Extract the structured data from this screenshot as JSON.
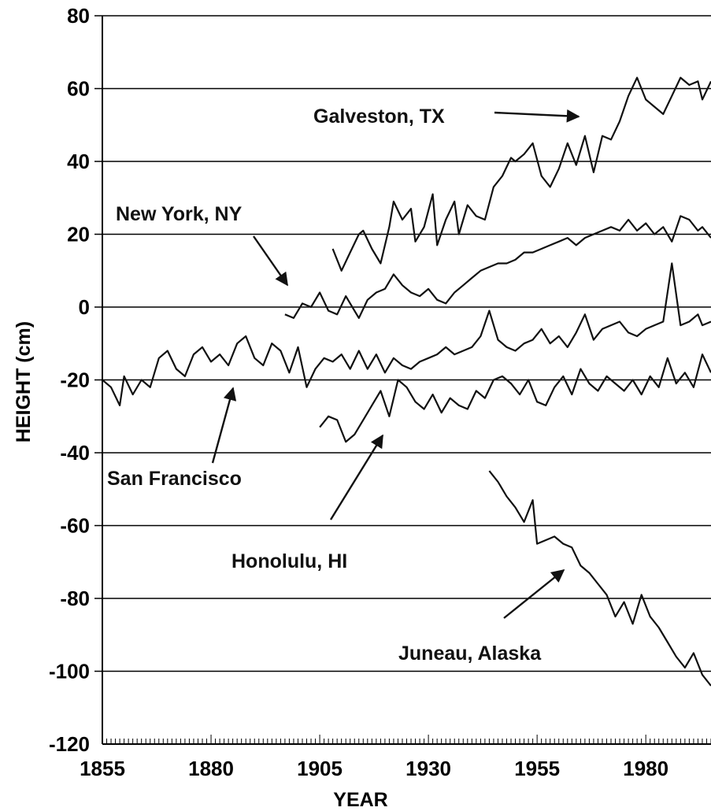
{
  "chart_data": {
    "type": "line",
    "title": "",
    "xlabel": "YEAR",
    "ylabel": "HEIGHT (cm)",
    "xlim": [
      1855,
      1995
    ],
    "ylim": [
      -120,
      80
    ],
    "xticks": [
      1855,
      1880,
      1905,
      1930,
      1955,
      1980
    ],
    "yticks": [
      -120,
      -100,
      -80,
      -60,
      -40,
      -20,
      0,
      20,
      40,
      60,
      80
    ],
    "grid": "horizontal",
    "legend": "none",
    "series": [
      {
        "name": "Galveston, TX",
        "x": [
          1908,
          1910,
          1912,
          1914,
          1915,
          1917,
          1919,
          1921,
          1922,
          1924,
          1926,
          1927,
          1929,
          1931,
          1932,
          1934,
          1936,
          1937,
          1939,
          1941,
          1943,
          1945,
          1947,
          1949,
          1950,
          1952,
          1954,
          1956,
          1958,
          1960,
          1962,
          1964,
          1966,
          1968,
          1970,
          1972,
          1974,
          1976,
          1978,
          1980,
          1982,
          1984,
          1986,
          1988,
          1990,
          1992,
          1993,
          1995
        ],
        "values": [
          16,
          10,
          15,
          20,
          21,
          16,
          12,
          22,
          29,
          24,
          27,
          18,
          22,
          31,
          17,
          24,
          29,
          20,
          28,
          25,
          24,
          33,
          36,
          41,
          40,
          42,
          45,
          36,
          33,
          38,
          45,
          39,
          47,
          37,
          47,
          46,
          51,
          58,
          63,
          57,
          55,
          53,
          58,
          63,
          61,
          62,
          57,
          62
        ]
      },
      {
        "name": "New York, NY",
        "x": [
          1897,
          1899,
          1901,
          1903,
          1905,
          1907,
          1909,
          1911,
          1913,
          1914,
          1916,
          1918,
          1920,
          1922,
          1924,
          1926,
          1928,
          1930,
          1932,
          1934,
          1936,
          1938,
          1940,
          1942,
          1944,
          1946,
          1948,
          1950,
          1952,
          1954,
          1956,
          1958,
          1960,
          1962,
          1964,
          1966,
          1968,
          1970,
          1972,
          1974,
          1976,
          1978,
          1980,
          1982,
          1984,
          1986,
          1988,
          1990,
          1992,
          1993,
          1995
        ],
        "values": [
          -2,
          -3,
          1,
          0,
          4,
          -1,
          -2,
          3,
          -1,
          -3,
          2,
          4,
          5,
          9,
          6,
          4,
          3,
          5,
          2,
          1,
          4,
          6,
          8,
          10,
          11,
          12,
          12,
          13,
          15,
          15,
          16,
          17,
          18,
          19,
          17,
          19,
          20,
          21,
          22,
          21,
          24,
          21,
          23,
          20,
          22,
          18,
          25,
          24,
          21,
          22,
          19
        ]
      },
      {
        "name": "San Francisco",
        "x": [
          1855,
          1857,
          1859,
          1860,
          1862,
          1864,
          1866,
          1868,
          1870,
          1872,
          1874,
          1876,
          1878,
          1880,
          1882,
          1884,
          1886,
          1888,
          1890,
          1892,
          1894,
          1896,
          1898,
          1900,
          1902,
          1904,
          1906,
          1908,
          1910,
          1912,
          1914,
          1916,
          1918,
          1920,
          1922,
          1924,
          1926,
          1928,
          1930,
          1932,
          1934,
          1936,
          1938,
          1940,
          1942,
          1944,
          1946,
          1948,
          1950,
          1952,
          1954,
          1956,
          1958,
          1960,
          1962,
          1964,
          1966,
          1968,
          1970,
          1972,
          1974,
          1976,
          1978,
          1980,
          1982,
          1984,
          1986,
          1988,
          1990,
          1992,
          1993,
          1995
        ],
        "values": [
          -20,
          -22,
          -27,
          -19,
          -24,
          -20,
          -22,
          -14,
          -12,
          -17,
          -19,
          -13,
          -11,
          -15,
          -13,
          -16,
          -10,
          -8,
          -14,
          -16,
          -10,
          -12,
          -18,
          -11,
          -22,
          -17,
          -14,
          -15,
          -13,
          -17,
          -12,
          -17,
          -13,
          -18,
          -14,
          -16,
          -17,
          -15,
          -14,
          -13,
          -11,
          -13,
          -12,
          -11,
          -8,
          -1,
          -9,
          -11,
          -12,
          -10,
          -9,
          -6,
          -10,
          -8,
          -11,
          -7,
          -2,
          -9,
          -6,
          -5,
          -4,
          -7,
          -8,
          -6,
          -5,
          -4,
          12,
          -5,
          -4,
          -2,
          -5,
          -4
        ]
      },
      {
        "name": "Honolulu, HI",
        "x": [
          1905,
          1907,
          1909,
          1911,
          1913,
          1915,
          1917,
          1919,
          1921,
          1923,
          1925,
          1927,
          1929,
          1931,
          1933,
          1935,
          1937,
          1939,
          1941,
          1943,
          1945,
          1947,
          1949,
          1951,
          1953,
          1955,
          1957,
          1959,
          1961,
          1963,
          1965,
          1967,
          1969,
          1971,
          1973,
          1975,
          1977,
          1979,
          1981,
          1983,
          1985,
          1987,
          1989,
          1991,
          1993,
          1995
        ],
        "values": [
          -33,
          -30,
          -31,
          -37,
          -35,
          -31,
          -27,
          -23,
          -30,
          -20,
          -22,
          -26,
          -28,
          -24,
          -29,
          -25,
          -27,
          -28,
          -23,
          -25,
          -20,
          -19,
          -21,
          -24,
          -20,
          -26,
          -27,
          -22,
          -19,
          -24,
          -17,
          -21,
          -23,
          -19,
          -21,
          -23,
          -20,
          -24,
          -19,
          -22,
          -14,
          -21,
          -18,
          -22,
          -13,
          -18
        ]
      },
      {
        "name": "Juneau, Alaska",
        "x": [
          1944,
          1946,
          1948,
          1950,
          1952,
          1954,
          1955,
          1957,
          1959,
          1961,
          1963,
          1965,
          1967,
          1969,
          1971,
          1973,
          1975,
          1977,
          1979,
          1981,
          1983,
          1985,
          1987,
          1989,
          1991,
          1993,
          1995
        ],
        "values": [
          -45,
          -48,
          -52,
          -55,
          -59,
          -53,
          -65,
          -64,
          -63,
          -65,
          -66,
          -71,
          -73,
          -76,
          -79,
          -85,
          -81,
          -87,
          -79,
          -85,
          -88,
          -92,
          -96,
          -99,
          -95,
          -101,
          -104
        ]
      }
    ],
    "annotations": [
      {
        "text": "Galveston, TX",
        "series": "Galveston, TX"
      },
      {
        "text": "New York, NY",
        "series": "New York, NY"
      },
      {
        "text": "San Francisco",
        "series": "San Francisco"
      },
      {
        "text": "Honolulu, HI",
        "series": "Honolulu, HI"
      },
      {
        "text": "Juneau, Alaska",
        "series": "Juneau, Alaska"
      }
    ]
  }
}
